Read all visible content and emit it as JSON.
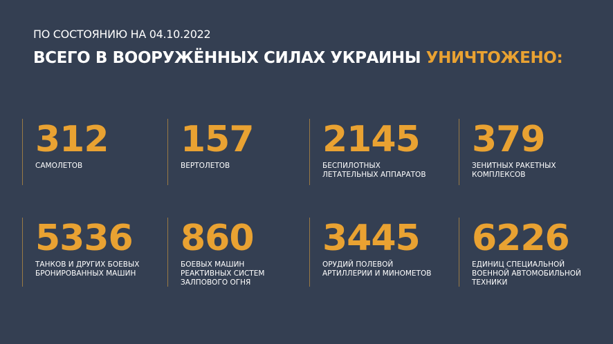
{
  "header": {
    "subtitle": "ПО СОСТОЯНИЮ НА 04.10.2022",
    "title_main": "ВСЕГО В ВООРУЖЁННЫХ СИЛАХ УКРАИНЫ ",
    "title_highlight": "УНИЧТОЖЕНО:"
  },
  "colors": {
    "background": "#343f52",
    "accent": "#e9a232"
  },
  "stats": [
    {
      "value": "312",
      "label": "САМОЛЕТОВ"
    },
    {
      "value": "157",
      "label": "ВЕРТОЛЕТОВ"
    },
    {
      "value": "2145",
      "label": "БЕСПИЛОТНЫХ\nЛЕТАТЕЛЬНЫХ АППАРАТОВ"
    },
    {
      "value": "379",
      "label": "ЗЕНИТНЫХ РАКЕТНЫХ\nКОМПЛЕКСОВ"
    },
    {
      "value": "5336",
      "label": "ТАНКОВ И ДРУГИХ БОЕВЫХ\nБРОНИРОВАННЫХ МАШИН"
    },
    {
      "value": "860",
      "label": "БОЕВЫХ МАШИН\nРЕАКТИВНЫХ СИСТЕМ\nЗАЛПОВОГО ОГНЯ"
    },
    {
      "value": "3445",
      "label": "ОРУДИЙ ПОЛЕВОЙ\nАРТИЛЛЕРИИ И МИНОМЕТОВ"
    },
    {
      "value": "6226",
      "label": "ЕДИНИЦ СПЕЦИАЛЬНОЙ\nВОЕННОЙ АВТОМОБИЛЬНОЙ\nТЕХНИКИ"
    }
  ]
}
